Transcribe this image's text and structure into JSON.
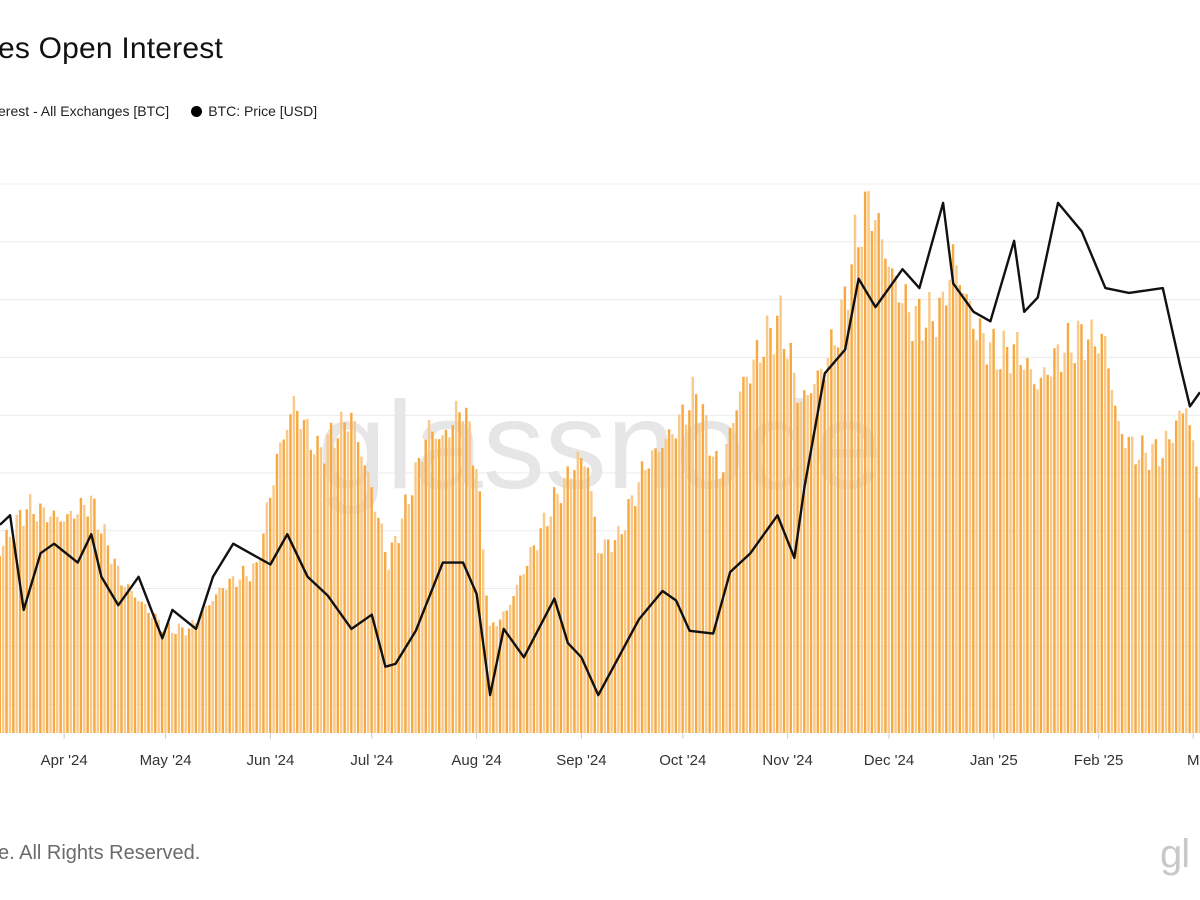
{
  "title": "es Open Interest",
  "legend": {
    "oi_label": "erest - All Exchanges [BTC]",
    "price_label": "BTC: Price [USD]"
  },
  "colors": {
    "oi": "#f7a941",
    "oi_light": "#f9c98a",
    "price": "#111111",
    "grid": "#ececec",
    "watermark": "#e6e6e6"
  },
  "footer": "e. All Rights Reserved.",
  "brand_logo": "gl",
  "watermark": "glassnode",
  "chart_data": {
    "type": "bar",
    "x_axis": {
      "type": "date",
      "range": [
        "2024-03-13",
        "2025-03-03"
      ],
      "ticks": [
        {
          "date": "2024-04-01",
          "label": "Apr '24"
        },
        {
          "date": "2024-05-01",
          "label": "May '24"
        },
        {
          "date": "2024-06-01",
          "label": "Jun '24"
        },
        {
          "date": "2024-07-01",
          "label": "Jul '24"
        },
        {
          "date": "2024-08-01",
          "label": "Aug '24"
        },
        {
          "date": "2024-09-01",
          "label": "Sep '24"
        },
        {
          "date": "2024-10-01",
          "label": "Oct '24"
        },
        {
          "date": "2024-11-01",
          "label": "Nov '24"
        },
        {
          "date": "2024-12-01",
          "label": "Dec '24"
        },
        {
          "date": "2025-01-01",
          "label": "Jan '25"
        },
        {
          "date": "2025-02-01",
          "label": "Feb '25"
        },
        {
          "date": "2025-03-01",
          "label": "M"
        }
      ]
    },
    "grid": true,
    "legend_position": "top-left",
    "series": [
      {
        "name": "erest - All Exchanges [BTC]",
        "type": "bar",
        "color": "#f7a941",
        "ylim": [
          0,
          90
        ],
        "x": [
          "2024-03-13",
          "2024-03-21",
          "2024-04-01",
          "2024-04-09",
          "2024-04-18",
          "2024-05-01",
          "2024-05-08",
          "2024-05-18",
          "2024-05-28",
          "2024-06-03",
          "2024-06-08",
          "2024-06-15",
          "2024-06-25",
          "2024-07-01",
          "2024-07-06",
          "2024-07-10",
          "2024-07-18",
          "2024-07-22",
          "2024-07-28",
          "2024-08-01",
          "2024-08-05",
          "2024-08-10",
          "2024-08-16",
          "2024-08-24",
          "2024-08-31",
          "2024-09-03",
          "2024-09-06",
          "2024-09-12",
          "2024-09-20",
          "2024-09-29",
          "2024-10-05",
          "2024-10-12",
          "2024-10-18",
          "2024-10-25",
          "2024-10-30",
          "2024-11-05",
          "2024-11-12",
          "2024-11-17",
          "2024-11-21",
          "2024-11-25",
          "2024-11-28",
          "2024-12-02",
          "2024-12-08",
          "2024-12-14",
          "2024-12-17",
          "2024-12-20",
          "2024-12-27",
          "2025-01-02",
          "2025-01-08",
          "2025-01-14",
          "2025-01-20",
          "2025-01-27",
          "2025-02-03",
          "2025-02-07",
          "2025-02-12",
          "2025-02-20",
          "2025-02-27",
          "2025-03-03"
        ],
        "values": [
          30,
          37,
          35,
          38,
          25,
          17,
          17,
          24,
          27,
          45,
          54,
          46,
          52,
          40,
          28,
          35,
          50,
          48,
          54,
          44,
          17,
          20,
          28,
          38,
          45,
          44,
          30,
          32,
          44,
          50,
          56,
          42,
          56,
          64,
          68,
          54,
          60,
          68,
          80,
          87,
          83,
          75,
          68,
          68,
          70,
          78,
          66,
          62,
          63,
          57,
          62,
          65,
          64,
          50,
          46,
          46,
          54,
          40
        ]
      },
      {
        "name": "BTC: Price [USD]",
        "type": "line",
        "color": "#111111",
        "ylim": [
          50000,
          108000
        ],
        "x": [
          "2024-03-13",
          "2024-03-16",
          "2024-03-20",
          "2024-03-25",
          "2024-03-29",
          "2024-04-05",
          "2024-04-09",
          "2024-04-12",
          "2024-04-17",
          "2024-04-23",
          "2024-04-30",
          "2024-05-03",
          "2024-05-10",
          "2024-05-15",
          "2024-05-21",
          "2024-05-26",
          "2024-06-01",
          "2024-06-06",
          "2024-06-12",
          "2024-06-18",
          "2024-06-25",
          "2024-07-01",
          "2024-07-05",
          "2024-07-08",
          "2024-07-14",
          "2024-07-22",
          "2024-07-28",
          "2024-08-01",
          "2024-08-05",
          "2024-08-09",
          "2024-08-15",
          "2024-08-24",
          "2024-08-28",
          "2024-09-01",
          "2024-09-06",
          "2024-09-12",
          "2024-09-18",
          "2024-09-25",
          "2024-09-29",
          "2024-10-03",
          "2024-10-10",
          "2024-10-15",
          "2024-10-21",
          "2024-10-29",
          "2024-11-03",
          "2024-11-06",
          "2024-11-12",
          "2024-11-18",
          "2024-11-22",
          "2024-11-27",
          "2024-12-05",
          "2024-12-10",
          "2024-12-17",
          "2024-12-20",
          "2024-12-26",
          "2024-12-31",
          "2025-01-07",
          "2025-01-10",
          "2025-01-14",
          "2025-01-20",
          "2025-01-27",
          "2025-02-03",
          "2025-02-10",
          "2025-02-20",
          "2025-02-25",
          "2025-02-28",
          "2025-03-03"
        ],
        "values": [
          72000,
          73000,
          63000,
          69000,
          70000,
          68000,
          71000,
          66500,
          63500,
          66500,
          60000,
          63000,
          61000,
          66500,
          70000,
          69000,
          67800,
          71000,
          66500,
          64500,
          61000,
          62500,
          57000,
          57300,
          60800,
          68000,
          68000,
          64700,
          54000,
          61000,
          58000,
          64200,
          59500,
          58000,
          54000,
          58000,
          62000,
          65000,
          64000,
          60800,
          60500,
          67000,
          69000,
          73000,
          68500,
          76000,
          88000,
          90500,
          98000,
          95000,
          99000,
          97000,
          106000,
          97500,
          94500,
          93500,
          102000,
          94500,
          96000,
          106000,
          103000,
          97000,
          96500,
          97000,
          89000,
          84500,
          86000
        ]
      }
    ]
  }
}
